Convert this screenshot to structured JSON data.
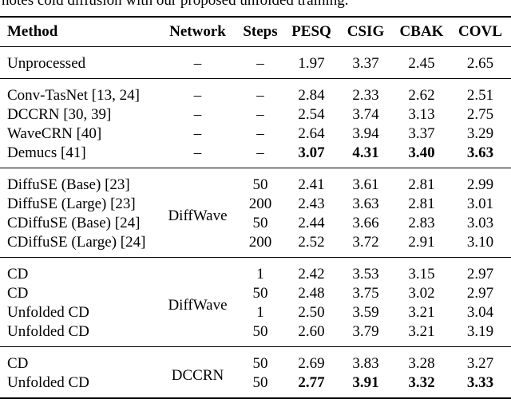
{
  "caption": "notes cold diffusion with our proposed unfolded training.",
  "table": {
    "header": [
      "Method",
      "Network",
      "Steps",
      "PESQ",
      "CSIG",
      "CBAK",
      "COVL"
    ],
    "groups": [
      {
        "rows": [
          [
            "Unprocessed",
            "–",
            "–",
            "1.97",
            "3.37",
            "2.45",
            "2.65"
          ]
        ]
      },
      {
        "rows": [
          [
            "Conv-TasNet [13, 24]",
            "–",
            "–",
            "2.84",
            "2.33",
            "2.62",
            "2.51"
          ],
          [
            "DCCRN [30, 39]",
            "–",
            "–",
            "2.54",
            "3.74",
            "3.13",
            "2.75"
          ],
          [
            "WaveCRN [40]",
            "–",
            "–",
            "2.64",
            "3.94",
            "3.37",
            "3.29"
          ],
          [
            "Demucs [41]",
            "–",
            "–",
            "3.07",
            "4.31",
            "3.40",
            "3.63"
          ]
        ]
      },
      {
        "network": "DiffWave",
        "rows": [
          [
            "DiffuSE (Base) [23]",
            "50",
            "2.41",
            "3.61",
            "2.81",
            "2.99"
          ],
          [
            "DiffuSE (Large) [23]",
            "200",
            "2.43",
            "3.63",
            "2.81",
            "3.01"
          ],
          [
            "CDiffuSE (Base) [24]",
            "50",
            "2.44",
            "3.66",
            "2.83",
            "3.03"
          ],
          [
            "CDiffuSE (Large) [24]",
            "200",
            "2.52",
            "3.72",
            "2.91",
            "3.10"
          ]
        ]
      },
      {
        "network": "DiffWave",
        "rows": [
          [
            "CD",
            "1",
            "2.42",
            "3.53",
            "3.15",
            "2.97"
          ],
          [
            "CD",
            "50",
            "2.48",
            "3.75",
            "3.02",
            "2.97"
          ],
          [
            "Unfolded CD",
            "1",
            "2.50",
            "3.59",
            "3.21",
            "3.04"
          ],
          [
            "Unfolded CD",
            "50",
            "2.60",
            "3.79",
            "3.21",
            "3.19"
          ]
        ]
      },
      {
        "network": "DCCRN",
        "rows": [
          [
            "CD",
            "50",
            "2.69",
            "3.83",
            "3.28",
            "3.27"
          ],
          [
            "Unfolded CD",
            "50",
            "2.77",
            "3.91",
            "3.32",
            "3.33"
          ]
        ]
      }
    ]
  }
}
